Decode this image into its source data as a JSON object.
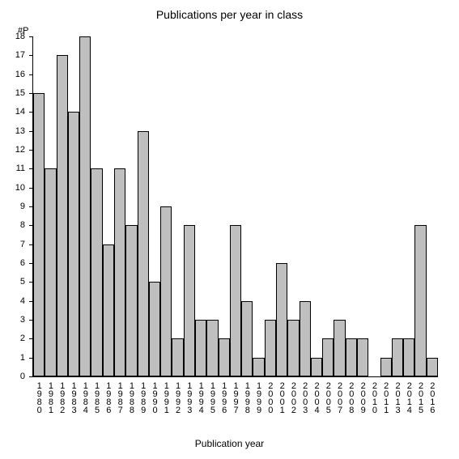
{
  "chart": {
    "type": "bar",
    "title": "Publications per year in class",
    "title_fontsize": 14,
    "y_axis_label": "#P",
    "x_axis_label": "Publication year",
    "x_label_fontsize": 12,
    "background_color": "#ffffff",
    "bar_color": "#bfbfbf",
    "bar_border_color": "#000000",
    "axis_color": "#000000",
    "ylim": [
      0,
      18
    ],
    "ytick_step": 1,
    "bar_width_ratio": 1.0,
    "categories": [
      "1980",
      "1981",
      "1982",
      "1983",
      "1984",
      "1985",
      "1986",
      "1987",
      "1988",
      "1989",
      "1990",
      "1991",
      "1992",
      "1993",
      "1994",
      "1995",
      "1996",
      "1997",
      "1998",
      "1999",
      "2000",
      "2001",
      "2002",
      "2003",
      "2004",
      "2005",
      "2007",
      "2008",
      "2009",
      "2010",
      "2011",
      "2013",
      "2014",
      "2015",
      "2016"
    ],
    "values": [
      15,
      11,
      17,
      14,
      18,
      11,
      7,
      11,
      8,
      13,
      5,
      9,
      2,
      8,
      3,
      3,
      2,
      8,
      4,
      1,
      3,
      6,
      3,
      4,
      1,
      2,
      3,
      2,
      2,
      0,
      1,
      2,
      2,
      8,
      1
    ]
  }
}
